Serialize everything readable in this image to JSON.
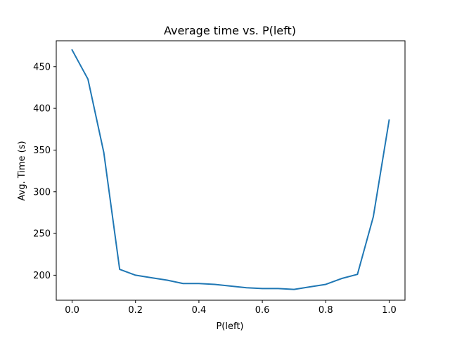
{
  "chart_data": {
    "type": "line",
    "title": "Average time vs. P(left)",
    "xlabel": "P(left)",
    "ylabel": "Avg. Time (s)",
    "xlim": [
      -0.05,
      1.05
    ],
    "ylim": [
      170,
      481
    ],
    "xticks": [
      0.0,
      0.2,
      0.4,
      0.6,
      0.8,
      1.0
    ],
    "xtick_labels": [
      "0.0",
      "0.2",
      "0.4",
      "0.6",
      "0.8",
      "1.0"
    ],
    "yticks": [
      200,
      250,
      300,
      350,
      400,
      450
    ],
    "ytick_labels": [
      "200",
      "250",
      "300",
      "350",
      "400",
      "450"
    ],
    "grid": false,
    "legend": "none",
    "series": [
      {
        "color": "#1f77b4",
        "x": [
          0.0,
          0.05,
          0.1,
          0.15,
          0.2,
          0.25,
          0.3,
          0.35,
          0.4,
          0.45,
          0.5,
          0.55,
          0.6,
          0.65,
          0.7,
          0.75,
          0.8,
          0.85,
          0.9,
          0.95,
          1.0
        ],
        "y": [
          470,
          435,
          347,
          207,
          200,
          197,
          194,
          190,
          190,
          189,
          187,
          185,
          184,
          184,
          183,
          186,
          189,
          196,
          201,
          270,
          386
        ]
      }
    ]
  }
}
